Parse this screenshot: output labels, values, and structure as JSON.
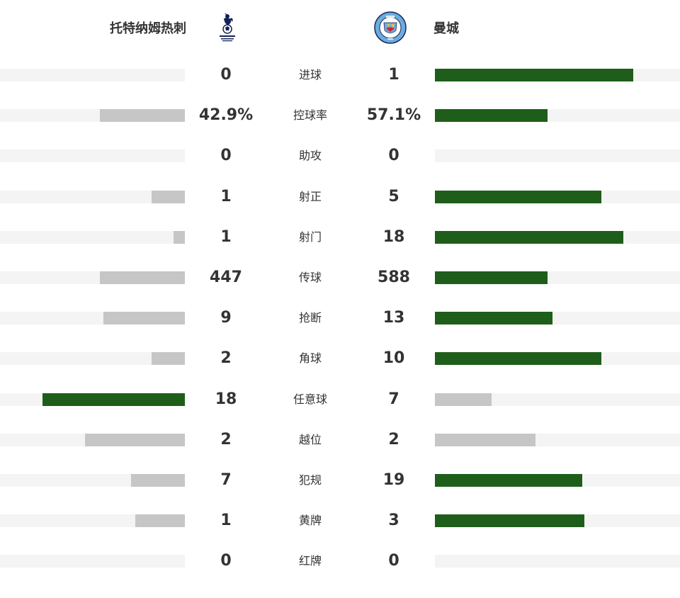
{
  "colors": {
    "winner_bar": "#1e5e1a",
    "loser_bar": "#c6c6c6",
    "track": "#f4f4f4",
    "text": "#333333"
  },
  "home": {
    "name": "托特纳姆热刺",
    "logo_icon": "tottenham-crest-icon"
  },
  "away": {
    "name": "曼城",
    "logo_icon": "manchester-city-crest-icon"
  },
  "stats": [
    {
      "label": "进球",
      "home": "0",
      "away": "1",
      "home_share": 0.0,
      "away_share": 0.81,
      "home_color": "#c6c6c6",
      "away_color": "#1e5e1a"
    },
    {
      "label": "控球率",
      "home": "42.9%",
      "away": "57.1%",
      "home_share": 0.46,
      "away_share": 0.46,
      "home_color": "#c6c6c6",
      "away_color": "#1e5e1a"
    },
    {
      "label": "助攻",
      "home": "0",
      "away": "0",
      "home_share": 0.0,
      "away_share": 0.0,
      "home_color": "#c6c6c6",
      "away_color": "#c6c6c6"
    },
    {
      "label": "射正",
      "home": "1",
      "away": "5",
      "home_share": 0.18,
      "away_share": 0.68,
      "home_color": "#c6c6c6",
      "away_color": "#1e5e1a"
    },
    {
      "label": "射门",
      "home": "1",
      "away": "18",
      "home_share": 0.06,
      "away_share": 0.77,
      "home_color": "#c6c6c6",
      "away_color": "#1e5e1a"
    },
    {
      "label": "传球",
      "home": "447",
      "away": "588",
      "home_share": 0.46,
      "away_share": 0.46,
      "home_color": "#c6c6c6",
      "away_color": "#1e5e1a"
    },
    {
      "label": "抢断",
      "home": "9",
      "away": "13",
      "home_share": 0.44,
      "away_share": 0.48,
      "home_color": "#c6c6c6",
      "away_color": "#1e5e1a"
    },
    {
      "label": "角球",
      "home": "2",
      "away": "10",
      "home_share": 0.18,
      "away_share": 0.68,
      "home_color": "#c6c6c6",
      "away_color": "#1e5e1a"
    },
    {
      "label": "任意球",
      "home": "18",
      "away": "7",
      "home_share": 0.77,
      "away_share": 0.23,
      "home_color": "#1e5e1a",
      "away_color": "#c6c6c6"
    },
    {
      "label": "越位",
      "home": "2",
      "away": "2",
      "home_share": 0.54,
      "away_share": 0.41,
      "home_color": "#c6c6c6",
      "away_color": "#c6c6c6"
    },
    {
      "label": "犯规",
      "home": "7",
      "away": "19",
      "home_share": 0.29,
      "away_share": 0.6,
      "home_color": "#c6c6c6",
      "away_color": "#1e5e1a"
    },
    {
      "label": "黄牌",
      "home": "1",
      "away": "3",
      "home_share": 0.27,
      "away_share": 0.61,
      "home_color": "#c6c6c6",
      "away_color": "#1e5e1a"
    },
    {
      "label": "红牌",
      "home": "0",
      "away": "0",
      "home_share": 0.0,
      "away_share": 0.0,
      "home_color": "#c6c6c6",
      "away_color": "#c6c6c6"
    }
  ]
}
